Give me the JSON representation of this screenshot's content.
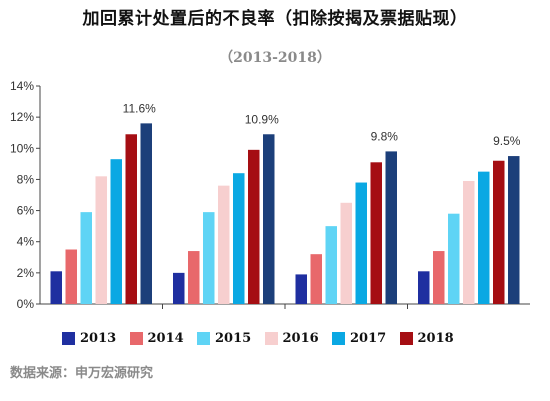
{
  "chart_data": {
    "type": "bar",
    "title": "加回累计处置后的不良率（扣除按揭及票据贴现）",
    "subtitle": "（2013-2018）",
    "source": "数据来源：申万宏源研究",
    "categories": [
      "",
      "",
      "",
      ""
    ],
    "series": [
      {
        "name": "2013",
        "color": "#1f2fa0",
        "values": [
          2.1,
          2.0,
          1.9,
          2.1
        ]
      },
      {
        "name": "2014",
        "color": "#e8686b",
        "values": [
          3.5,
          3.4,
          3.2,
          3.4
        ]
      },
      {
        "name": "2015",
        "color": "#5fd4f5",
        "values": [
          5.9,
          5.9,
          5.0,
          5.8
        ]
      },
      {
        "name": "2016",
        "color": "#f7cfcf",
        "values": [
          8.2,
          7.6,
          6.5,
          7.9
        ]
      },
      {
        "name": "2017",
        "color": "#0aa8e3",
        "values": [
          9.3,
          8.4,
          7.8,
          8.5
        ]
      },
      {
        "name": "2018",
        "color": "#a50e13",
        "values": [
          10.9,
          9.9,
          9.1,
          9.2
        ]
      },
      {
        "name": "",
        "color": "#1c3f7a",
        "values": [
          11.6,
          10.9,
          9.8,
          9.5
        ]
      }
    ],
    "data_labels": [
      "11.6%",
      "10.9%",
      "9.8%",
      "9.5%"
    ],
    "y_ticks": [
      "0%",
      "2%",
      "4%",
      "6%",
      "8%",
      "10%",
      "12%",
      "14%"
    ],
    "ylim": [
      0,
      14
    ],
    "xlabel": "",
    "ylabel": "",
    "grid": false,
    "legend_position": "bottom"
  }
}
